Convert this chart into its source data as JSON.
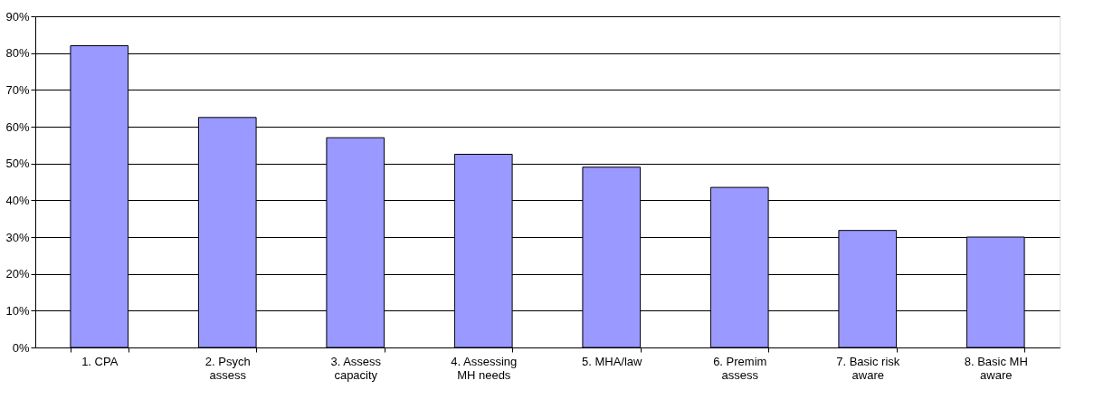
{
  "chart_data": {
    "type": "bar",
    "categories": [
      "1. CPA",
      "2. Psych assess",
      "3. Assess capacity",
      "4. Assessing MH needs",
      "5. MHA/law",
      "6. Premim assess",
      "7. Basic risk aware",
      "8. Basic MH aware"
    ],
    "values": [
      82,
      62.5,
      57,
      52.5,
      49,
      43.5,
      31.8,
      30
    ],
    "color": "#9999ff",
    "ylim": [
      0,
      90
    ],
    "yticks": [
      {
        "value": 0,
        "label": "0%"
      },
      {
        "value": 10,
        "label": "10%"
      },
      {
        "value": 20,
        "label": "20%"
      },
      {
        "value": 30,
        "label": "30%"
      },
      {
        "value": 40,
        "label": "40%"
      },
      {
        "value": 50,
        "label": "50%"
      },
      {
        "value": 60,
        "label": "60%"
      },
      {
        "value": 70,
        "label": "70%"
      },
      {
        "value": 80,
        "label": "80%"
      },
      {
        "value": 90,
        "label": "90%"
      }
    ],
    "grid": "y"
  }
}
